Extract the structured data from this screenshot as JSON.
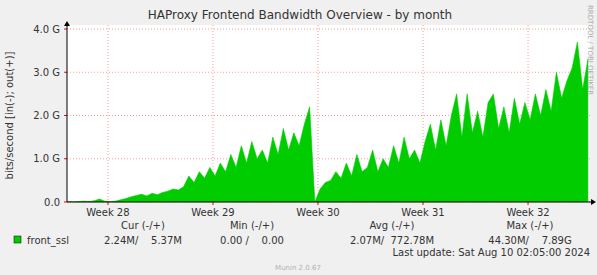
{
  "chart_data": {
    "type": "area",
    "title": "HAProxy Frontend Bandwidth Overview - by month",
    "y_label": "bits/second [in(-); out(+)]",
    "x": [
      28.12,
      28.17,
      28.22,
      28.27,
      28.32,
      28.37,
      28.42,
      28.47,
      28.52,
      28.57,
      28.62,
      28.67,
      28.72,
      28.77,
      28.82,
      28.87,
      28.92,
      28.97,
      29.02,
      29.07,
      29.12,
      29.17,
      29.22,
      29.27,
      29.32,
      29.37,
      29.42,
      29.47,
      29.52,
      29.57,
      29.62,
      29.67,
      29.72,
      29.77,
      29.82,
      29.87,
      29.92,
      29.97,
      30.02,
      30.07,
      30.12,
      30.17,
      30.22,
      30.27,
      30.32,
      30.37,
      30.42,
      30.47,
      30.52,
      30.57,
      30.62,
      30.67,
      30.72,
      30.77,
      30.82,
      30.87,
      30.92,
      30.97,
      31.02,
      31.07,
      31.12,
      31.17,
      31.22,
      31.27,
      31.32,
      31.37,
      31.42,
      31.47,
      31.52,
      31.57,
      31.62,
      31.67,
      31.72,
      31.77,
      31.82,
      31.87,
      31.92,
      31.97,
      32.02,
      32.07,
      32.12,
      32.17,
      32.22,
      32.27,
      32.32,
      32.37,
      32.42,
      32.47,
      32.52,
      32.57,
      32.62,
      32.67,
      32.72,
      32.77,
      32.82,
      32.87,
      32.92,
      32.97,
      33.02,
      33.07
    ],
    "series": [
      {
        "name": "front_ssl",
        "color": "#00cc00",
        "values": [
          10000000.0,
          0,
          10000000.0,
          20000000.0,
          10000000.0,
          30000000.0,
          70000000.0,
          20000000.0,
          10000000.0,
          20000000.0,
          50000000.0,
          80000000.0,
          120000000.0,
          150000000.0,
          180000000.0,
          140000000.0,
          200000000.0,
          170000000.0,
          220000000.0,
          250000000.0,
          300000000.0,
          280000000.0,
          350000000.0,
          600000000.0,
          450000000.0,
          700000000.0,
          550000000.0,
          800000000.0,
          600000000.0,
          900000000.0,
          700000000.0,
          1100000000.0,
          800000000.0,
          1300000000.0,
          900000000.0,
          1400000000.0,
          1000000000.0,
          1200000000.0,
          900000000.0,
          1500000000.0,
          1100000000.0,
          1700000000.0,
          1200000000.0,
          1600000000.0,
          1300000000.0,
          1800000000.0,
          2200000000.0,
          0,
          300000000.0,
          450000000.0,
          500000000.0,
          700000000.0,
          550000000.0,
          900000000.0,
          600000000.0,
          1100000000.0,
          700000000.0,
          800000000.0,
          1200000000.0,
          700000000.0,
          1000000000.0,
          800000000.0,
          1300000000.0,
          900000000.0,
          1500000000.0,
          1000000000.0,
          1200000000.0,
          900000000.0,
          1400000000.0,
          1800000000.0,
          1200000000.0,
          1900000000.0,
          1300000000.0,
          2000000000.0,
          2500000000.0,
          1500000000.0,
          2500000000.0,
          1600000000.0,
          2100000000.0,
          1500000000.0,
          2300000000.0,
          2500000000.0,
          1700000000.0,
          2200000000.0,
          1600000000.0,
          2400000000.0,
          1800000000.0,
          2300000000.0,
          1900000000.0,
          2500000000.0,
          2000000000.0,
          2600000000.0,
          2100000000.0,
          3000000000.0,
          2400000000.0,
          2800000000.0,
          3100000000.0,
          3700000000.0,
          2600000000.0,
          3300000000.0
        ],
        "cur": "2.24M/    5.37M",
        "min": "0.00 /    0.00",
        "avg": "2.07M/  772.78M",
        "max": "44.30M/    7.89G"
      }
    ],
    "columns": [
      "Cur (-/+)",
      "Min (-/+)",
      "Avg (-/+)",
      "Max (-/+)"
    ],
    "xlim": [
      28.11,
      33.09
    ],
    "xticks": [
      {
        "value": 28.5,
        "label": "Week 28"
      },
      {
        "value": 29.5,
        "label": "Week 29"
      },
      {
        "value": 30.5,
        "label": "Week 30"
      },
      {
        "value": 31.5,
        "label": "Week 31"
      },
      {
        "value": 32.5,
        "label": "Week 32"
      }
    ],
    "ylim": [
      0,
      4000000000.0
    ],
    "yticks": [
      {
        "value": 0,
        "label": "0.0"
      },
      {
        "value": 1000000000.0,
        "label": "1.0 G"
      },
      {
        "value": 2000000000.0,
        "label": "2.0 G"
      },
      {
        "value": 3000000000.0,
        "label": "3.0 G"
      },
      {
        "value": 4000000000.0,
        "label": "4.0 G"
      }
    ],
    "grid": true,
    "legend": "bottom",
    "footer": "Last update: Sat Aug 10 02:05:00 2024",
    "credit": "Munin 2.0.67",
    "watermark": "RRDTOOL / TOBI OETIKER"
  }
}
